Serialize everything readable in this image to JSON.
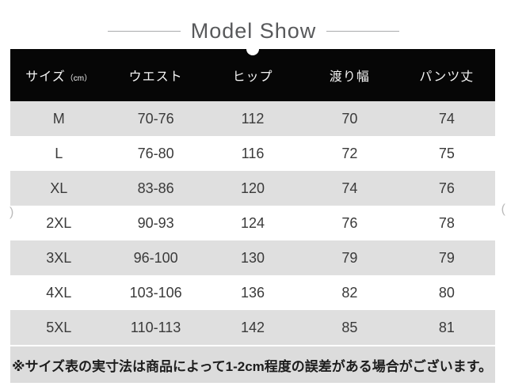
{
  "chart_data": {
    "type": "table",
    "title": "Model Show",
    "size_unit": "（cm）",
    "columns": [
      "サイズ",
      "ウエスト",
      "ヒップ",
      "渡り幅",
      "パンツ丈"
    ],
    "rows": [
      [
        "M",
        "70-76",
        "112",
        "70",
        "74"
      ],
      [
        "L",
        "76-80",
        "116",
        "72",
        "75"
      ],
      [
        "XL",
        "83-86",
        "120",
        "74",
        "76"
      ],
      [
        "2XL",
        "90-93",
        "124",
        "76",
        "78"
      ],
      [
        "3XL",
        "96-100",
        "130",
        "79",
        "79"
      ],
      [
        "4XL",
        "103-106",
        "136",
        "82",
        "80"
      ],
      [
        "5XL",
        "110-113",
        "142",
        "85",
        "81"
      ]
    ],
    "layout": "header row black with white text, body rows alternate white and light gray, all cells centered"
  },
  "footer": {
    "note": "※サイズ表の実寸法は商品によって1-2cm程度の誤差がある場合がございます。"
  },
  "artifacts": {
    "left_mark": ")",
    "right_mark": "("
  },
  "colors": {
    "header_bg": "#060606",
    "header_text": "#f5f5f5",
    "row_alt_bg": "#dfdfdf",
    "body_text": "#3a3a3a",
    "footer_bg": "#dcdcdc",
    "footer_text": "#1d1d1d",
    "title_text": "#58595b",
    "title_line": "#aaabad"
  }
}
